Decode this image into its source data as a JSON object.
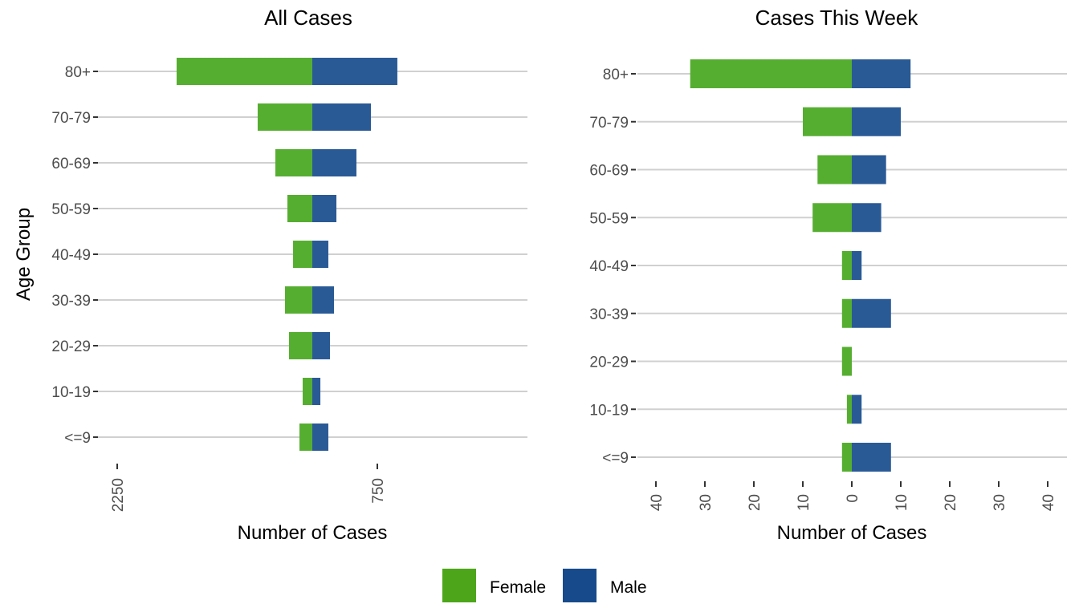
{
  "chart_data": [
    {
      "type": "bar",
      "orientation": "horizontal",
      "style": "population-pyramid",
      "title": "All Cases",
      "xlabel": "Number of Cases",
      "ylabel": "Age Group",
      "categories": [
        "80+",
        "70-79",
        "60-69",
        "50-59",
        "40-49",
        "30-39",
        "20-29",
        "10-19",
        "<=9"
      ],
      "series": [
        {
          "name": "Female",
          "side": "left",
          "values": [
            1565,
            630,
            426,
            287,
            222,
            315,
            269,
            111,
            148
          ]
        },
        {
          "name": "Male",
          "side": "right",
          "values": [
            981,
            676,
            509,
            278,
            185,
            250,
            204,
            93,
            185
          ]
        }
      ],
      "xticks": [
        {
          "value": -2250,
          "label": "2250"
        },
        {
          "value": 750,
          "label": "750"
        }
      ],
      "xlim": [
        -2500,
        2500
      ],
      "grid": "horizontal-major",
      "show_ylabel": true
    },
    {
      "type": "bar",
      "orientation": "horizontal",
      "style": "population-pyramid",
      "title": "Cases This Week",
      "xlabel": "Number of Cases",
      "ylabel": "",
      "categories": [
        "80+",
        "70-79",
        "60-69",
        "50-59",
        "40-49",
        "30-39",
        "20-29",
        "10-19",
        "<=9"
      ],
      "series": [
        {
          "name": "Female",
          "side": "left",
          "values": [
            33,
            10,
            7,
            8,
            2,
            2,
            2,
            1,
            2
          ]
        },
        {
          "name": "Male",
          "side": "right",
          "values": [
            12,
            10,
            7,
            6,
            2,
            8,
            0,
            2,
            8
          ]
        }
      ],
      "xticks": [
        {
          "value": -40,
          "label": "40"
        },
        {
          "value": -30,
          "label": "30"
        },
        {
          "value": -20,
          "label": "20"
        },
        {
          "value": -10,
          "label": "10"
        },
        {
          "value": 0,
          "label": "0"
        },
        {
          "value": 10,
          "label": "10"
        },
        {
          "value": 20,
          "label": "20"
        },
        {
          "value": 30,
          "label": "30"
        },
        {
          "value": 40,
          "label": "40"
        }
      ],
      "xlim": [
        -40.5,
        44
      ],
      "grid": "horizontal-major",
      "show_ylabel": false
    }
  ],
  "legend": {
    "position": "bottom",
    "items": [
      {
        "label": "Female",
        "color": "#4da61a"
      },
      {
        "label": "Male",
        "color": "#174a8b"
      }
    ]
  },
  "colors": {
    "female_bar": "#56ae31",
    "male_bar": "#2a5a96"
  }
}
